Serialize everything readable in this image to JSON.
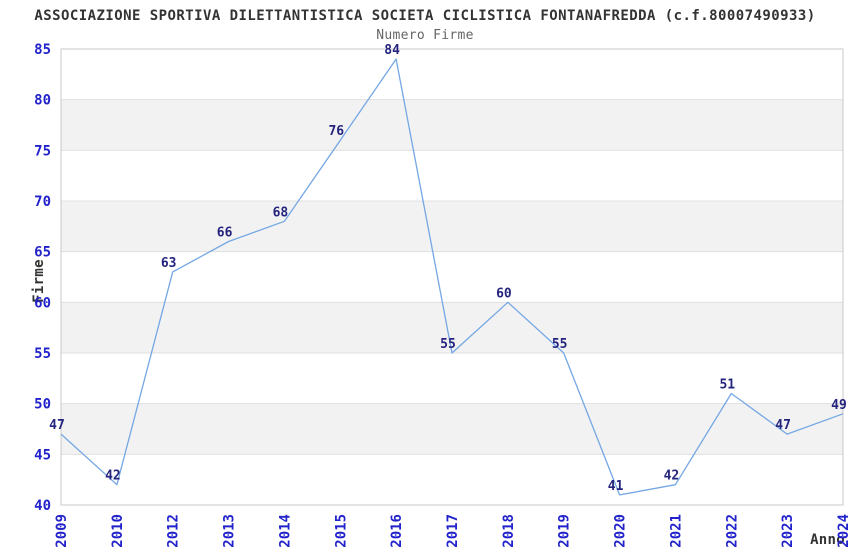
{
  "chart_data": {
    "type": "line",
    "title": "ASSOCIAZIONE SPORTIVA DILETTANTISTICA SOCIETA CICLISTICA FONTANAFREDDA (c.f.80007490933)",
    "subtitle": "Numero Firme",
    "xlabel": "Anno",
    "ylabel": "Firme",
    "categories": [
      "2009",
      "2010",
      "2012",
      "2013",
      "2014",
      "2015",
      "2016",
      "2017",
      "2018",
      "2019",
      "2020",
      "2021",
      "2022",
      "2023",
      "2024"
    ],
    "values": [
      47,
      42,
      63,
      66,
      68,
      76,
      84,
      55,
      60,
      55,
      41,
      42,
      51,
      47,
      49
    ],
    "ylim": [
      40,
      85
    ],
    "ytick_step": 5,
    "point_labels_visible": true,
    "markers": "none",
    "grid": "horizontal",
    "banded_background": true,
    "legend_position": "none",
    "colors": {
      "line": "#74a7e4",
      "tick_label": "#2323cc",
      "point_label": "#24247e",
      "title": "#333333",
      "subtitle": "#666666",
      "axis_title": "#333333",
      "band": "#f2f2f2",
      "grid": "#e0e0e0",
      "border": "#c8c8c8",
      "background": "#ffffff"
    }
  }
}
